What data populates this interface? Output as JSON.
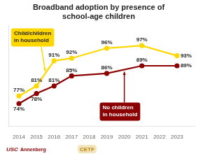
{
  "chart_data": {
    "type": "line",
    "title": "Broadband adoption by presence of\nschool-age children",
    "x": [
      2014,
      2015,
      2016,
      2017,
      2019,
      2021,
      2023
    ],
    "series": [
      {
        "name": "Child/children\nin household",
        "color": "#FFD700",
        "marker": "circle",
        "values": [
          77,
          81,
          91,
          92,
          96,
          97,
          93
        ],
        "value_labels": [
          "77%",
          "81%",
          "91%",
          "92%",
          "96%",
          "97%",
          "93%"
        ]
      },
      {
        "name": "No children\nin household",
        "color": "#8B0000",
        "marker": "circle",
        "values": [
          74,
          78,
          81,
          85,
          86,
          89,
          89
        ],
        "value_labels": [
          "74%",
          "78%",
          "81%",
          "85%",
          "86%",
          "89%",
          "89%"
        ]
      }
    ],
    "xlim": [
      2013.4,
      2024.0
    ],
    "xticks": [
      2014,
      2015,
      2016,
      2017,
      2018,
      2019,
      2020,
      2021,
      2022,
      2023
    ],
    "ylim": [
      65,
      105
    ],
    "grid": false,
    "data_labels": true,
    "tick_labels": "x",
    "annotations": [
      "USC",
      "Annenberg",
      "CETF"
    ]
  }
}
